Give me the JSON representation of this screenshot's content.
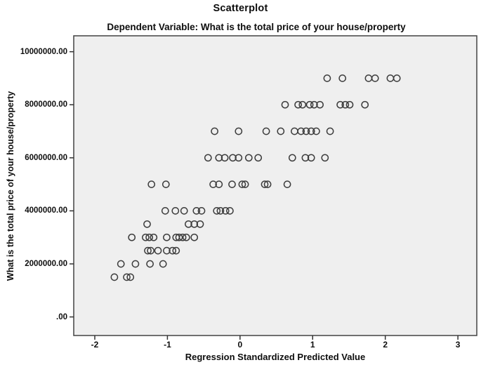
{
  "figure": {
    "title": "Scatterplot",
    "subtitle": "Dependent Variable: What is the total price of your house/property"
  },
  "colors": {
    "page_bg": "#ffffff",
    "plot_bg": "#efefef",
    "plot_border": "#424242",
    "marker_stroke": "#3d3d3d",
    "tick_color": "#333333",
    "text_color": "#0d0d0d"
  },
  "chart_data": {
    "type": "scatter",
    "title": "Scatterplot",
    "subtitle": "Dependent Variable: What is the total price of your house/property",
    "xlabel": "Regression Standardized Predicted Value",
    "ylabel": "What is the total price of your house/property",
    "xlim": [
      -2.29,
      3.26
    ],
    "ylim": [
      -700000,
      10600000
    ],
    "x_ticks": [
      -2,
      -1,
      0,
      1,
      2,
      3
    ],
    "x_tick_labels": [
      "-2",
      "-1",
      "0",
      "1",
      "2",
      "3"
    ],
    "y_ticks": [
      0,
      2000000,
      4000000,
      6000000,
      8000000,
      10000000
    ],
    "y_tick_labels": [
      ".00",
      "2000000.00",
      "4000000.00",
      "6000000.00",
      "8000000.00",
      "10000000.00"
    ],
    "grid": false,
    "legend": "none",
    "marker": {
      "shape": "open-circle",
      "radius_px": 4.6
    },
    "points": [
      [
        1.2,
        9000000
      ],
      [
        1.41,
        9000000
      ],
      [
        1.77,
        9000000
      ],
      [
        1.86,
        9000000
      ],
      [
        2.07,
        9000000
      ],
      [
        2.16,
        9000000
      ],
      [
        0.62,
        8000000
      ],
      [
        0.8,
        8000000
      ],
      [
        0.86,
        8000000
      ],
      [
        0.96,
        8000000
      ],
      [
        1.02,
        8000000
      ],
      [
        1.1,
        8000000
      ],
      [
        1.38,
        8000000
      ],
      [
        1.45,
        8000000
      ],
      [
        1.51,
        8000000
      ],
      [
        1.72,
        8000000
      ],
      [
        -0.35,
        7000000
      ],
      [
        -0.02,
        7000000
      ],
      [
        0.36,
        7000000
      ],
      [
        0.56,
        7000000
      ],
      [
        0.75,
        7000000
      ],
      [
        0.84,
        7000000
      ],
      [
        0.91,
        7000000
      ],
      [
        0.98,
        7000000
      ],
      [
        1.05,
        7000000
      ],
      [
        1.24,
        7000000
      ],
      [
        -0.44,
        6000000
      ],
      [
        -0.29,
        6000000
      ],
      [
        -0.21,
        6000000
      ],
      [
        -0.1,
        6000000
      ],
      [
        -0.02,
        6000000
      ],
      [
        0.12,
        6000000
      ],
      [
        0.25,
        6000000
      ],
      [
        0.72,
        6000000
      ],
      [
        0.9,
        6000000
      ],
      [
        0.98,
        6000000
      ],
      [
        1.17,
        6000000
      ],
      [
        -1.22,
        5000000
      ],
      [
        -1.02,
        5000000
      ],
      [
        -0.37,
        5000000
      ],
      [
        -0.29,
        5000000
      ],
      [
        -0.11,
        5000000
      ],
      [
        0.03,
        5000000
      ],
      [
        0.07,
        5000000
      ],
      [
        0.34,
        5000000
      ],
      [
        0.38,
        5000000
      ],
      [
        0.65,
        5000000
      ],
      [
        -1.03,
        4000000
      ],
      [
        -0.89,
        4000000
      ],
      [
        -0.77,
        4000000
      ],
      [
        -0.6,
        4000000
      ],
      [
        -0.53,
        4000000
      ],
      [
        -0.32,
        4000000
      ],
      [
        -0.27,
        4000000
      ],
      [
        -0.2,
        4000000
      ],
      [
        -0.14,
        4000000
      ],
      [
        -1.28,
        3500000
      ],
      [
        -0.71,
        3500000
      ],
      [
        -0.63,
        3500000
      ],
      [
        -0.55,
        3500000
      ],
      [
        -1.49,
        3000000
      ],
      [
        -1.3,
        3000000
      ],
      [
        -1.25,
        3000000
      ],
      [
        -1.19,
        3000000
      ],
      [
        -1.01,
        3000000
      ],
      [
        -0.88,
        3000000
      ],
      [
        -0.84,
        3000000
      ],
      [
        -0.79,
        3000000
      ],
      [
        -0.74,
        3000000
      ],
      [
        -0.63,
        3000000
      ],
      [
        -1.27,
        2500000
      ],
      [
        -1.23,
        2500000
      ],
      [
        -1.13,
        2500000
      ],
      [
        -1.01,
        2500000
      ],
      [
        -0.93,
        2500000
      ],
      [
        -0.88,
        2500000
      ],
      [
        -1.64,
        2000000
      ],
      [
        -1.44,
        2000000
      ],
      [
        -1.24,
        2000000
      ],
      [
        -1.06,
        2000000
      ],
      [
        -1.73,
        1500000
      ],
      [
        -1.56,
        1500000
      ],
      [
        -1.51,
        1500000
      ]
    ]
  }
}
